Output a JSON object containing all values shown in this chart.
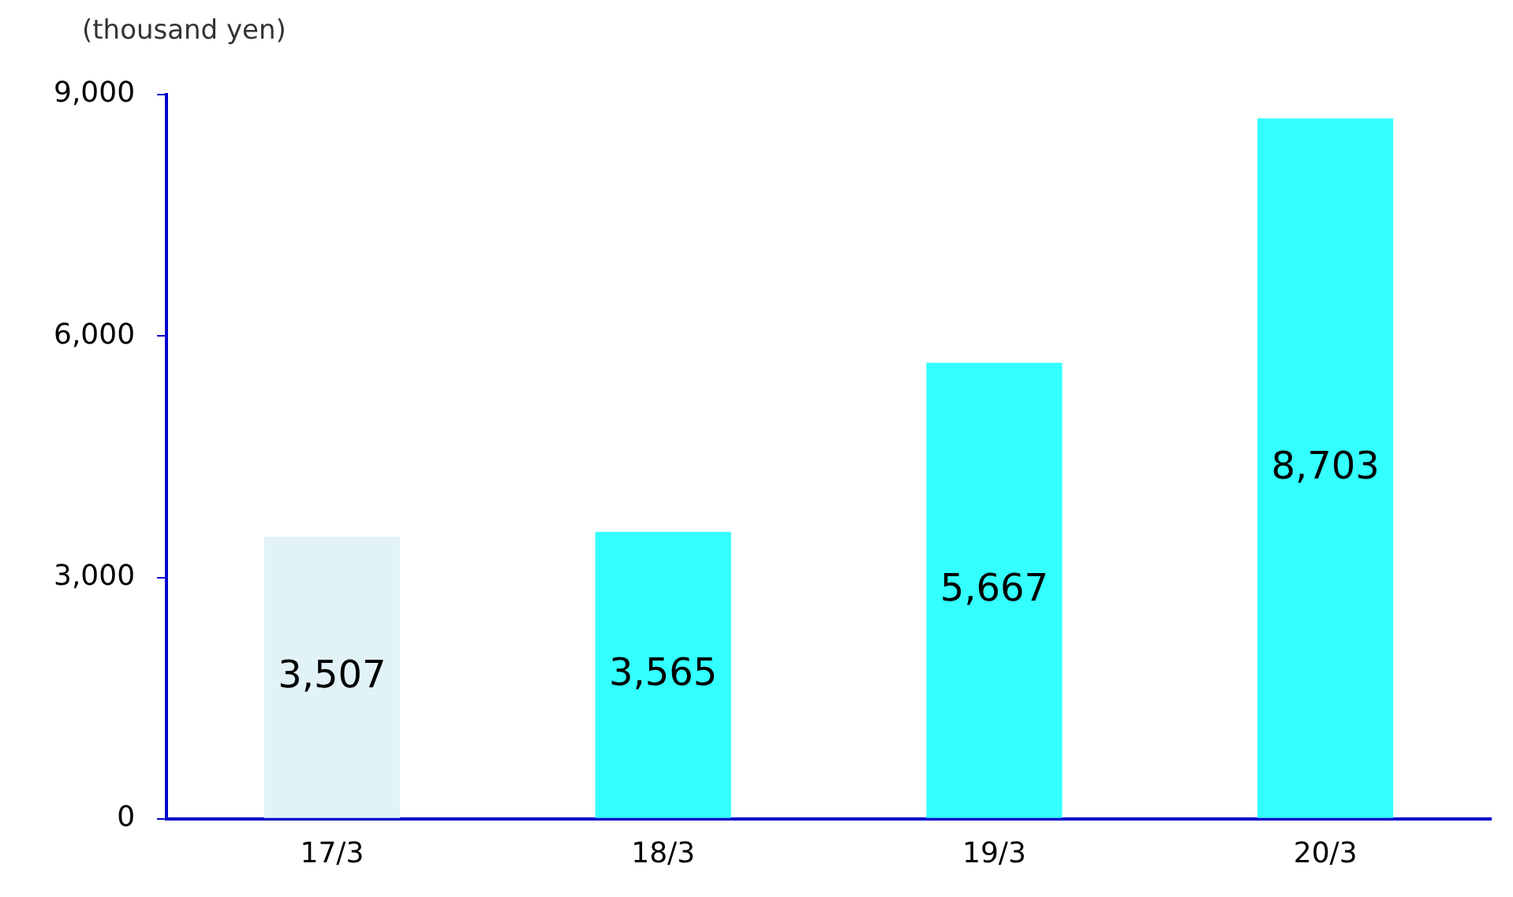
{
  "chart_data": {
    "type": "bar",
    "ylabel": "(thousand yen)",
    "categories": [
      "17/3",
      "18/3",
      "19/3",
      "20/3"
    ],
    "values": [
      3507,
      3565,
      5667,
      8703
    ],
    "colors": [
      "#e2f3f7",
      "#33ffff",
      "#33ffff",
      "#33ffff"
    ],
    "ylim": [
      0,
      9000
    ],
    "yticks": [
      {
        "value": 0,
        "label": "0"
      },
      {
        "value": 3000,
        "label": "3,000"
      },
      {
        "value": 6000,
        "label": "6,000"
      },
      {
        "value": 9000,
        "label": "9,000"
      }
    ],
    "value_labels": [
      "3,507",
      "3,565",
      "5,667",
      "8,703"
    ],
    "grid": false,
    "legend": false
  }
}
